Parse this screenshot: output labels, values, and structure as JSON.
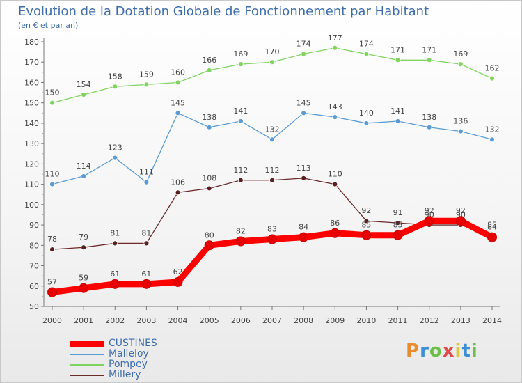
{
  "title": "Evolution de la Dotation Globale de Fonctionnement par Habitant",
  "subtitle": "(en € et par an)",
  "logo": {
    "text": "Proxiti",
    "colors": [
      "#e98a2b",
      "#3b8fd6",
      "#6cc04a",
      "#e04b4b",
      "#e2c43a",
      "#3b8fd6",
      "#6cc04a"
    ]
  },
  "chart_data": {
    "type": "line",
    "x": [
      "2000",
      "2001",
      "2002",
      "2003",
      "2004",
      "2005",
      "2006",
      "2007",
      "2008",
      "2009",
      "2010",
      "2011",
      "2012",
      "2013",
      "2014"
    ],
    "ylim": [
      50,
      180
    ],
    "yticks": [
      50,
      60,
      70,
      80,
      90,
      100,
      110,
      120,
      130,
      140,
      150,
      160,
      170,
      180
    ],
    "grid": false,
    "legend_position": "bottom-left",
    "series": [
      {
        "name": "CUSTINES",
        "color": "#ff0000",
        "marker": "#e60000",
        "thick": true,
        "labels": true,
        "values": [
          57,
          59,
          61,
          61,
          62,
          80,
          82,
          83,
          84,
          86,
          85,
          85,
          92,
          92,
          84
        ]
      },
      {
        "name": "Malleloy",
        "color": "#5b9bd5",
        "marker": "#5b9bd5",
        "thick": false,
        "labels": true,
        "values": [
          110,
          114,
          123,
          111,
          145,
          138,
          141,
          132,
          145,
          143,
          140,
          141,
          138,
          136,
          132
        ]
      },
      {
        "name": "Pompey",
        "color": "#7fd45f",
        "marker": "#7fd45f",
        "thick": false,
        "labels": true,
        "values": [
          150,
          154,
          158,
          159,
          160,
          166,
          169,
          170,
          174,
          177,
          174,
          171,
          171,
          169,
          162
        ]
      },
      {
        "name": "Millery",
        "color": "#6b2a2a",
        "marker": "#5a1f1f",
        "thick": false,
        "labels": true,
        "values": [
          78,
          79,
          81,
          81,
          106,
          108,
          112,
          112,
          113,
          110,
          92,
          91,
          90,
          90,
          85
        ]
      }
    ]
  }
}
